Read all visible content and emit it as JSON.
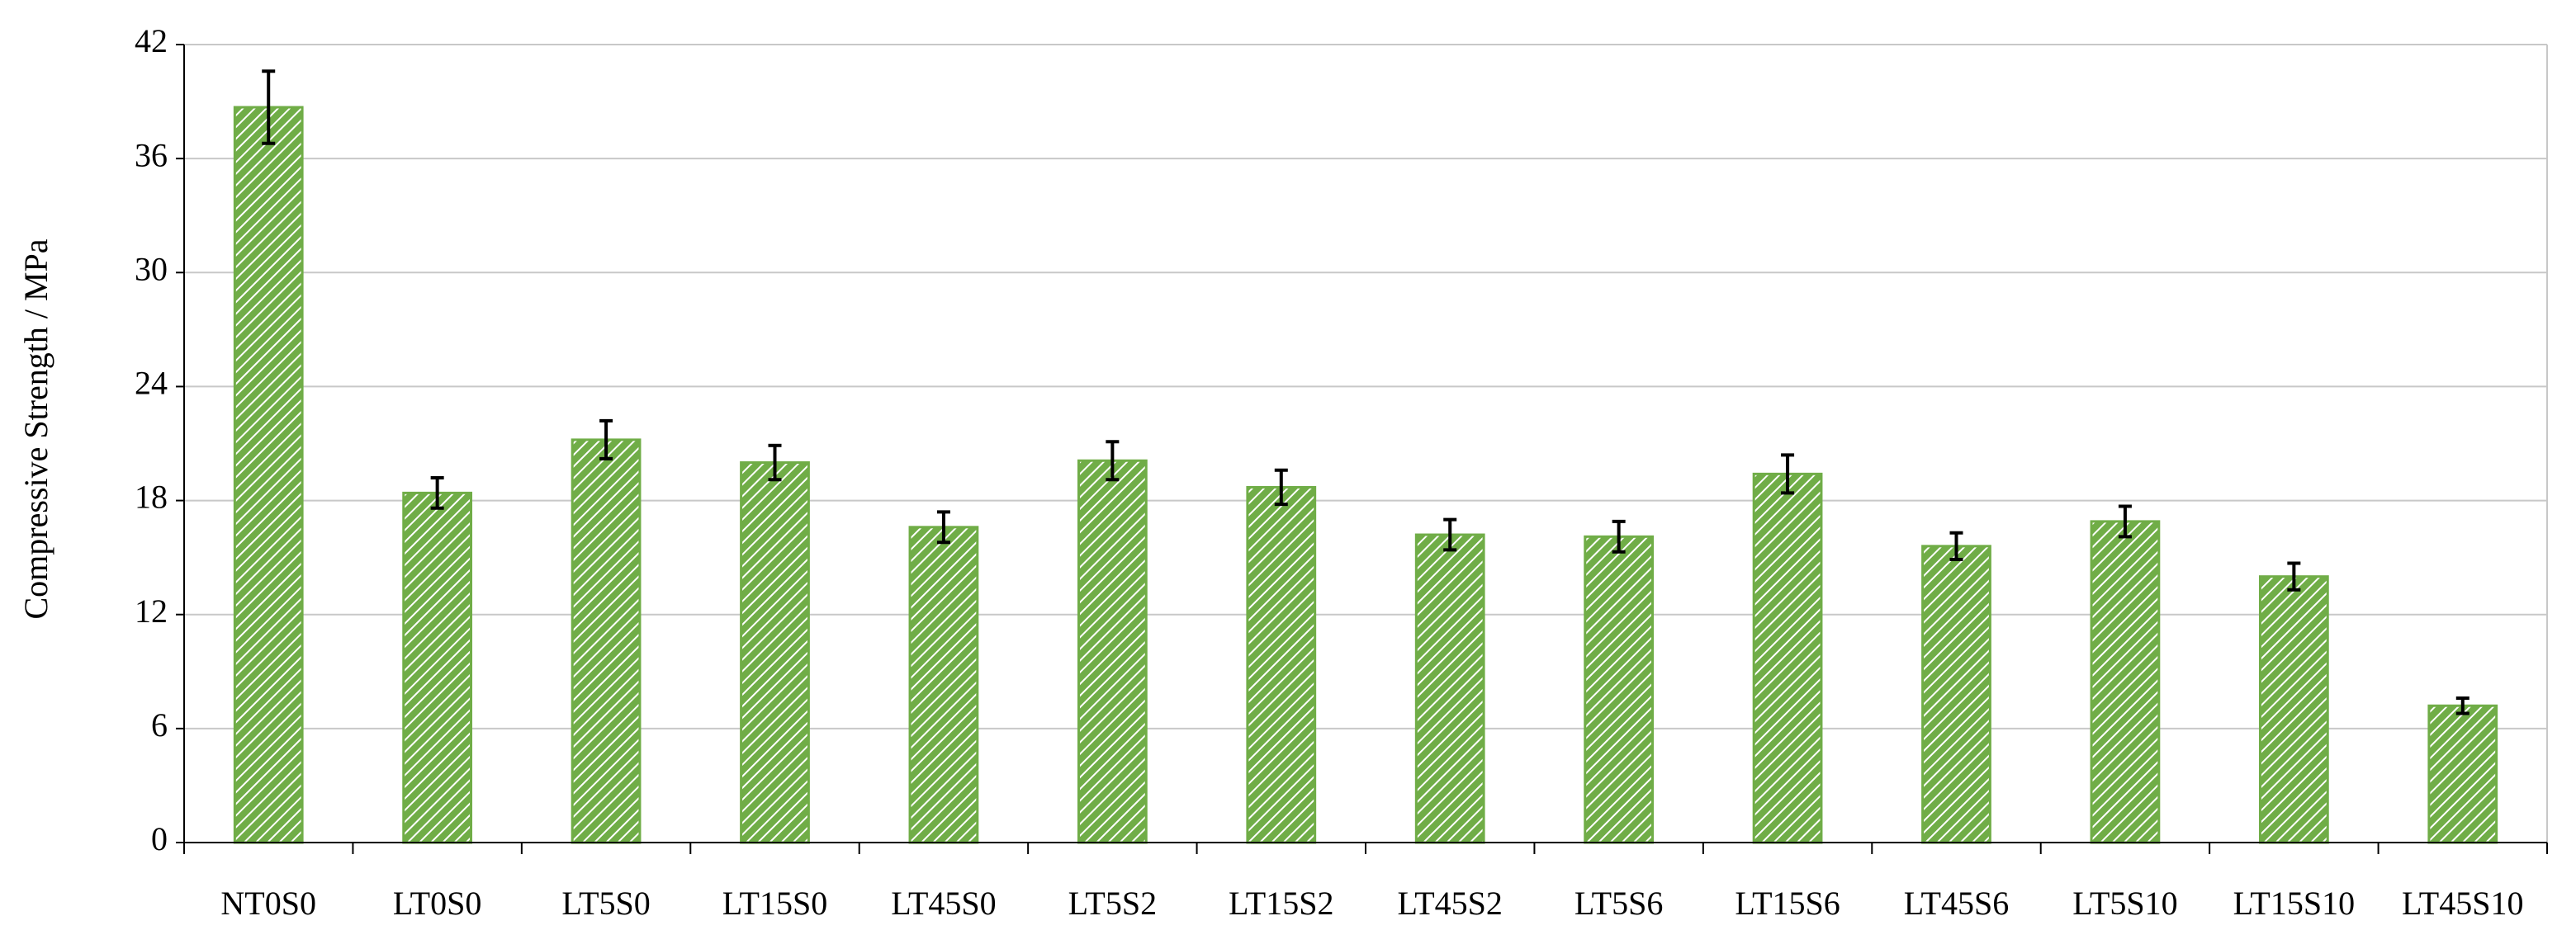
{
  "chart_data": {
    "type": "bar",
    "ylabel": "Compressive Strength / MPa",
    "categories": [
      "NT0S0",
      "LT0S0",
      "LT5S0",
      "LT15S0",
      "LT45S0",
      "LT5S2",
      "LT15S2",
      "LT45S2",
      "LT5S6",
      "LT15S6",
      "LT45S6",
      "LT5S10",
      "LT15S10",
      "LT45S10"
    ],
    "values": [
      38.7,
      18.4,
      21.2,
      20.0,
      16.6,
      20.1,
      18.7,
      16.2,
      16.1,
      19.4,
      15.6,
      16.9,
      14.0,
      7.2
    ],
    "errors": [
      1.9,
      0.8,
      1.0,
      0.9,
      0.8,
      1.0,
      0.9,
      0.8,
      0.8,
      1.0,
      0.7,
      0.8,
      0.7,
      0.4
    ],
    "color": "#70ad47",
    "ylim": [
      0,
      42
    ],
    "yticks": [
      0,
      6,
      12,
      18,
      24,
      30,
      36,
      42
    ],
    "grid": true
  }
}
